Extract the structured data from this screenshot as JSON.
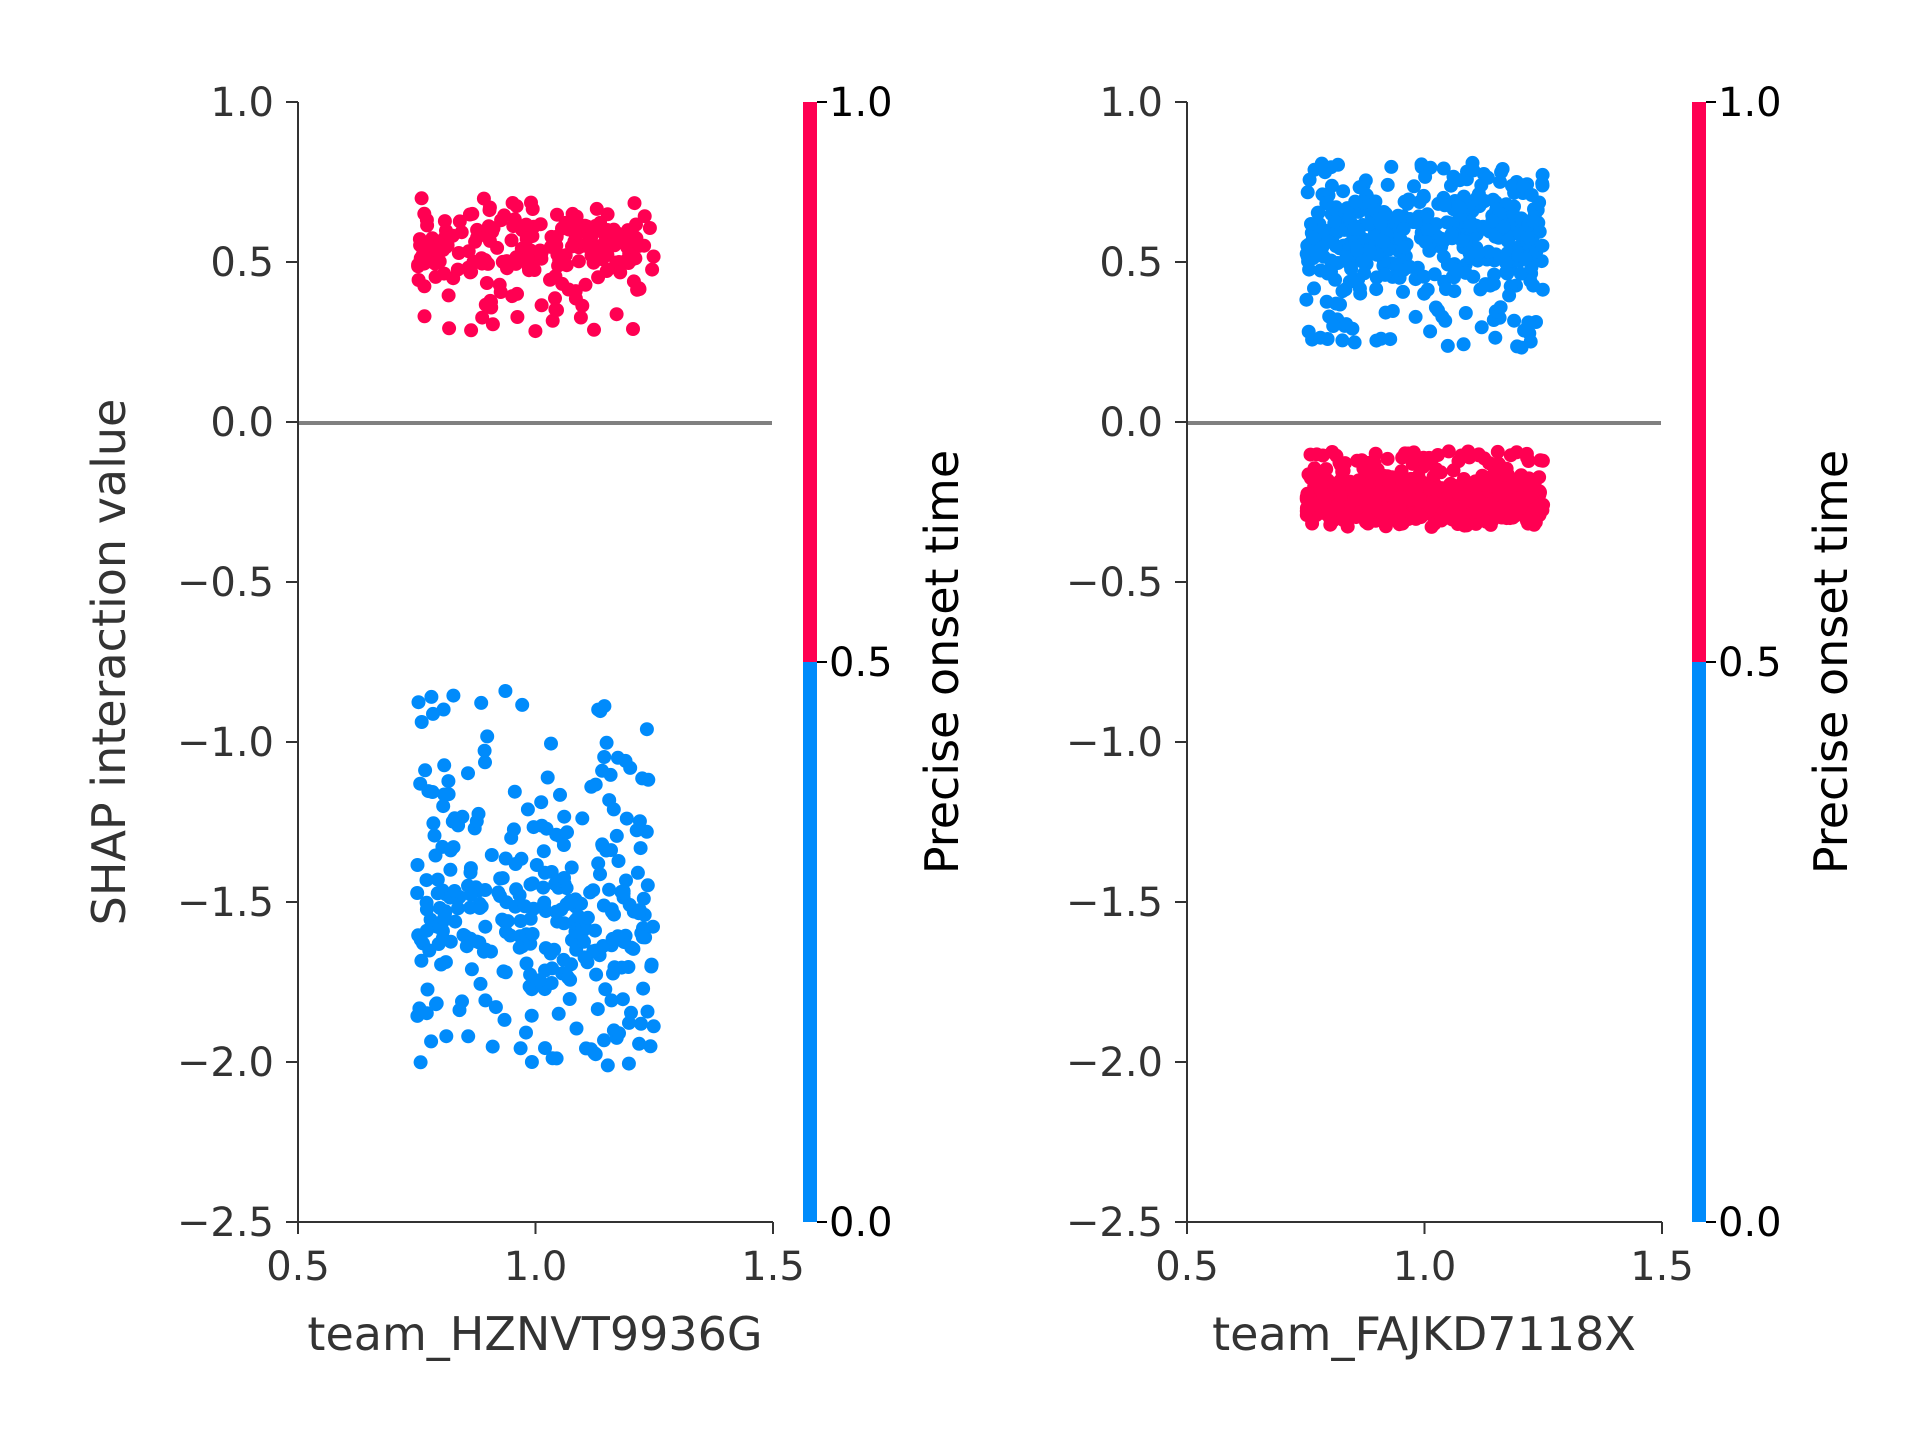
{
  "chart_data": [
    {
      "type": "scatter",
      "xlabel": "team_HZNVT9936G",
      "ylabel": "SHAP interaction value",
      "xlim": [
        0.5,
        1.5
      ],
      "ylim": [
        -2.5,
        1.0
      ],
      "xticks": [
        "0.5",
        "1.0",
        "1.5"
      ],
      "yticks": [
        "1.0",
        "0.5",
        "0.0",
        "−0.5",
        "−1.0",
        "−1.5",
        "−2.0",
        "−2.5"
      ],
      "zero_line": true,
      "colorbar": {
        "label": "Precise onset time",
        "ticks": [
          "0.0",
          "0.5",
          "1.0"
        ],
        "low_color": "#008bfb",
        "high_color": "#ff0052"
      },
      "series": [
        {
          "color_value": 1.0,
          "color": "#ff0052",
          "x_range": [
            0.75,
            1.25
          ],
          "y_range": [
            0.28,
            0.7
          ],
          "y_center": 0.55,
          "n_points": 220
        },
        {
          "color_value": 0.0,
          "color": "#008bfb",
          "x_range": [
            0.75,
            1.25
          ],
          "y_range": [
            -2.02,
            -0.84
          ],
          "y_center": -1.55,
          "n_points": 320
        }
      ]
    },
    {
      "type": "scatter",
      "xlabel": "team_FAJKD7118X",
      "ylabel": "",
      "xlim": [
        0.5,
        1.5
      ],
      "ylim": [
        -2.5,
        1.0
      ],
      "xticks": [
        "0.5",
        "1.0",
        "1.5"
      ],
      "yticks": [
        "1.0",
        "0.5",
        "0.0",
        "−0.5",
        "−1.0",
        "−1.5",
        "−2.0",
        "−2.5"
      ],
      "zero_line": true,
      "colorbar": {
        "label": "Precise onset time",
        "ticks": [
          "0.0",
          "0.5",
          "1.0"
        ],
        "low_color": "#008bfb",
        "high_color": "#ff0052"
      },
      "series": [
        {
          "color_value": 0.0,
          "color": "#008bfb",
          "x_range": [
            0.75,
            1.25
          ],
          "y_range": [
            0.23,
            0.81
          ],
          "y_center": 0.58,
          "n_points": 450
        },
        {
          "color_value": 1.0,
          "color": "#ff0052",
          "x_range": [
            0.75,
            1.25
          ],
          "y_range": [
            -0.33,
            -0.09
          ],
          "y_center": -0.24,
          "n_points": 650
        }
      ]
    }
  ]
}
